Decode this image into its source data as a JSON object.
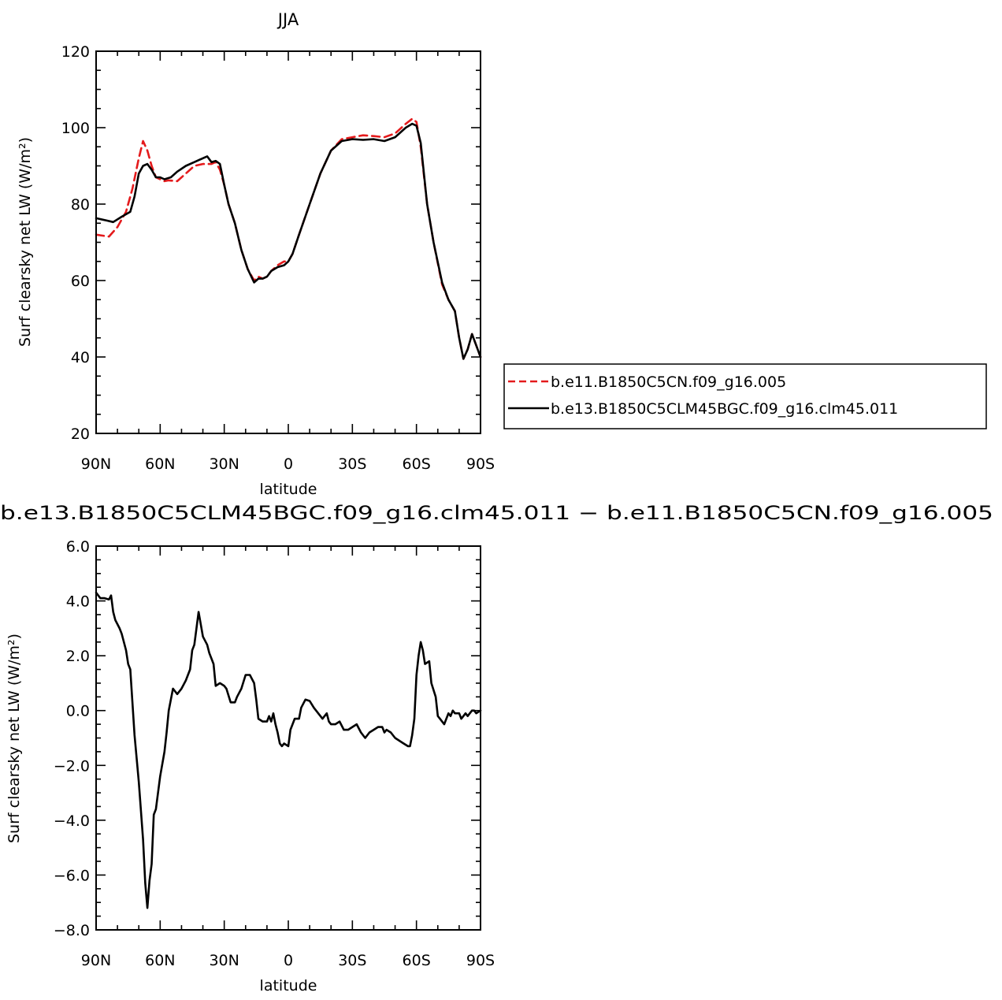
{
  "chart_data": [
    {
      "type": "line",
      "title": "JJA",
      "xlabel": "latitude",
      "ylabel": "Surf clearsky net LW (W/m²)",
      "xlim": [
        90,
        -90
      ],
      "ylim": [
        20,
        120
      ],
      "xticks": [
        90,
        60,
        30,
        0,
        -30,
        -60,
        -90
      ],
      "xtick_labels": [
        "90N",
        "60N",
        "30N",
        "0",
        "30S",
        "60S",
        "90S"
      ],
      "yticks": [
        20,
        40,
        60,
        80,
        100,
        120
      ],
      "ytick_labels": [
        "20",
        "40",
        "60",
        "80",
        "100",
        "120"
      ],
      "grid": false,
      "legend_position": "right",
      "series": [
        {
          "name": "b.e11.B1850C5CN.f09_g16.005",
          "color": "#e41a1c",
          "dash": "dashed",
          "x": [
            90,
            84,
            80,
            76,
            73,
            70,
            68,
            66,
            64,
            62,
            60,
            58,
            56,
            52,
            48,
            44,
            40,
            36,
            34,
            32,
            30,
            28,
            25,
            22,
            19,
            16,
            14,
            12,
            10,
            8,
            5,
            2,
            0,
            -2,
            -5,
            -10,
            -15,
            -20,
            -25,
            -30,
            -35,
            -40,
            -45,
            -50,
            -55,
            -58,
            -60,
            -62,
            -65,
            -68,
            -72,
            -75,
            -78,
            -80,
            -82,
            -84,
            -86,
            -88,
            -90
          ],
          "y": [
            72,
            71.5,
            74,
            78,
            84,
            92,
            96.5,
            94,
            90,
            87,
            86.5,
            86,
            86.2,
            86,
            88,
            90,
            90.5,
            90.5,
            91,
            89,
            85,
            80,
            75,
            68,
            63,
            60,
            61,
            60.5,
            61,
            62.5,
            64,
            65,
            65,
            67,
            72,
            80,
            88,
            94,
            97,
            97.5,
            98,
            97.8,
            97.5,
            98.5,
            101,
            102.3,
            101.5,
            95,
            80,
            70,
            59,
            55,
            52,
            45,
            39.5,
            42,
            46,
            43,
            40
          ]
        },
        {
          "name": "b.e13.B1850C5CLM45BGC.f09_g16.clm45.011",
          "color": "#000000",
          "dash": "solid",
          "x": [
            90,
            85,
            82,
            78,
            74,
            72,
            70,
            68,
            66,
            64,
            62,
            60,
            58,
            55,
            52,
            48,
            44,
            40,
            38,
            36,
            34,
            32,
            30,
            28,
            25,
            22,
            19,
            16,
            14,
            12,
            10,
            8,
            5,
            2,
            0,
            -2,
            -5,
            -10,
            -15,
            -20,
            -25,
            -30,
            -35,
            -40,
            -45,
            -50,
            -55,
            -58,
            -60,
            -62,
            -65,
            -68,
            -72,
            -75,
            -78,
            -80,
            -82,
            -84,
            -86,
            -88,
            -90
          ],
          "y": [
            76.3,
            75.7,
            75.3,
            76.7,
            78,
            82,
            88,
            90,
            90.5,
            89,
            87,
            87,
            86.5,
            87,
            88.5,
            90,
            91,
            92,
            92.5,
            91,
            91.3,
            90.5,
            85,
            80,
            75,
            68,
            63,
            59.5,
            60.5,
            60.5,
            61,
            62.5,
            63.5,
            64,
            65,
            67,
            72,
            80,
            88,
            94,
            96.5,
            97,
            96.8,
            97,
            96.5,
            97.5,
            100,
            101,
            100.5,
            96,
            80,
            70,
            59.5,
            55,
            52,
            45,
            39.5,
            42,
            46,
            43,
            40
          ]
        }
      ]
    },
    {
      "type": "line",
      "title": "b.e13.B1850C5CLM45BGC.f09_g16.clm45.011 − b.e11.B1850C5CN.f09_g16.005",
      "xlabel": "latitude",
      "ylabel": "Surf clearsky net LW (W/m²)",
      "xlim": [
        90,
        -90
      ],
      "ylim": [
        -8,
        6
      ],
      "xticks": [
        90,
        60,
        30,
        0,
        -30,
        -60,
        -90
      ],
      "xtick_labels": [
        "90N",
        "60N",
        "30N",
        "0",
        "30S",
        "60S",
        "90S"
      ],
      "yticks": [
        -8,
        -6,
        -4,
        -2,
        0,
        2,
        4,
        6
      ],
      "ytick_labels": [
        "−8.0",
        "−6.0",
        "−4.0",
        "−2.0",
        "0.0",
        "2.0",
        "4.0",
        "6.0"
      ],
      "grid": false,
      "series": [
        {
          "color": "#000000",
          "x": [
            90,
            88,
            86,
            84,
            83,
            82,
            81,
            79,
            78,
            76,
            75,
            74,
            72,
            70,
            68,
            67,
            66,
            65,
            64,
            63,
            62,
            60,
            58,
            57,
            56,
            55,
            54,
            52,
            50,
            48,
            46,
            45,
            44,
            43,
            42,
            40,
            38,
            37,
            36,
            35,
            34,
            32,
            30,
            29,
            27,
            26,
            25,
            24,
            22,
            20,
            18,
            16,
            15,
            14,
            12,
            10,
            9,
            8,
            7,
            6,
            5,
            4,
            3,
            2,
            0,
            -1,
            -3,
            -5,
            -6,
            -8,
            -10,
            -12,
            -14,
            -16,
            -18,
            -19,
            -20,
            -22,
            -24,
            -26,
            -28,
            -30,
            -32,
            -34,
            -36,
            -38,
            -40,
            -42,
            -44,
            -45,
            -46,
            -48,
            -50,
            -52,
            -54,
            -56,
            -57,
            -58,
            -59,
            -60,
            -61,
            -62,
            -63,
            -64,
            -66,
            -67,
            -69,
            -70,
            -71,
            -73,
            -75,
            -76,
            -77,
            -78,
            -80,
            -81,
            -82,
            -83,
            -84,
            -85,
            -86,
            -87,
            -88,
            -90
          ],
          "y": [
            4.3,
            4.1,
            4.1,
            4.05,
            4.2,
            3.6,
            3.3,
            3.0,
            2.8,
            2.2,
            1.7,
            1.5,
            -0.9,
            -2.6,
            -4.7,
            -6.3,
            -7.2,
            -6.2,
            -5.6,
            -3.8,
            -3.6,
            -2.4,
            -1.5,
            -0.8,
            0.0,
            0.4,
            0.8,
            0.6,
            0.8,
            1.1,
            1.5,
            2.2,
            2.4,
            3.0,
            3.6,
            2.7,
            2.4,
            2.1,
            1.9,
            1.7,
            0.9,
            1.0,
            0.9,
            0.8,
            0.3,
            0.3,
            0.3,
            0.5,
            0.8,
            1.3,
            1.3,
            1.0,
            0.4,
            -0.3,
            -0.4,
            -0.4,
            -0.2,
            -0.4,
            -0.1,
            -0.5,
            -0.8,
            -1.2,
            -1.3,
            -1.2,
            -1.3,
            -0.7,
            -0.3,
            -0.3,
            0.1,
            0.4,
            0.35,
            0.1,
            -0.1,
            -0.3,
            -0.1,
            -0.4,
            -0.5,
            -0.5,
            -0.4,
            -0.7,
            -0.7,
            -0.6,
            -0.5,
            -0.8,
            -1.0,
            -0.8,
            -0.7,
            -0.6,
            -0.6,
            -0.8,
            -0.7,
            -0.8,
            -1.0,
            -1.1,
            -1.2,
            -1.3,
            -1.3,
            -0.9,
            -0.3,
            1.3,
            2.0,
            2.5,
            2.2,
            1.7,
            1.8,
            1.0,
            0.5,
            -0.2,
            -0.3,
            -0.5,
            -0.1,
            -0.2,
            0.0,
            -0.1,
            -0.1,
            -0.3,
            -0.2,
            -0.1,
            -0.2,
            -0.1,
            0.0,
            0.0,
            -0.1,
            0.0
          ]
        }
      ]
    }
  ]
}
